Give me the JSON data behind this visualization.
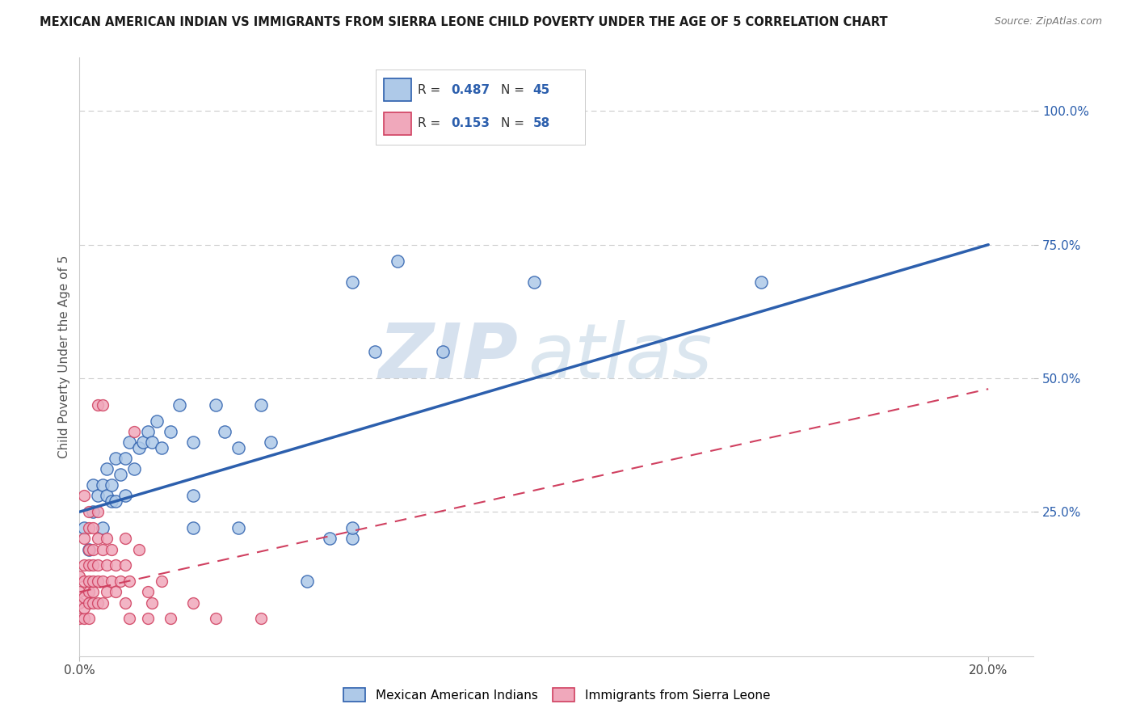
{
  "title": "MEXICAN AMERICAN INDIAN VS IMMIGRANTS FROM SIERRA LEONE CHILD POVERTY UNDER THE AGE OF 5 CORRELATION CHART",
  "source": "Source: ZipAtlas.com",
  "ylabel": "Child Poverty Under the Age of 5",
  "xlim": [
    0.0,
    0.21
  ],
  "ylim": [
    -0.02,
    1.1
  ],
  "xtick_positions": [
    0.0,
    0.2
  ],
  "xtick_labels": [
    "0.0%",
    "20.0%"
  ],
  "ytick_positions": [
    0.25,
    0.5,
    0.75,
    1.0
  ],
  "ytick_labels": [
    "25.0%",
    "50.0%",
    "75.0%",
    "100.0%"
  ],
  "watermark": "ZIPatlas",
  "legend_label_blue": "Mexican American Indians",
  "legend_label_pink": "Immigrants from Sierra Leone",
  "R_blue": "0.487",
  "N_blue": "45",
  "R_pink": "0.153",
  "N_pink": "58",
  "blue_dots": [
    [
      0.001,
      0.22
    ],
    [
      0.002,
      0.18
    ],
    [
      0.003,
      0.25
    ],
    [
      0.003,
      0.3
    ],
    [
      0.004,
      0.28
    ],
    [
      0.005,
      0.22
    ],
    [
      0.005,
      0.3
    ],
    [
      0.006,
      0.28
    ],
    [
      0.006,
      0.33
    ],
    [
      0.007,
      0.3
    ],
    [
      0.007,
      0.27
    ],
    [
      0.008,
      0.35
    ],
    [
      0.008,
      0.27
    ],
    [
      0.009,
      0.32
    ],
    [
      0.01,
      0.28
    ],
    [
      0.01,
      0.35
    ],
    [
      0.011,
      0.38
    ],
    [
      0.012,
      0.33
    ],
    [
      0.013,
      0.37
    ],
    [
      0.014,
      0.38
    ],
    [
      0.015,
      0.4
    ],
    [
      0.016,
      0.38
    ],
    [
      0.017,
      0.42
    ],
    [
      0.018,
      0.37
    ],
    [
      0.02,
      0.4
    ],
    [
      0.022,
      0.45
    ],
    [
      0.025,
      0.38
    ],
    [
      0.025,
      0.28
    ],
    [
      0.025,
      0.22
    ],
    [
      0.03,
      0.45
    ],
    [
      0.032,
      0.4
    ],
    [
      0.035,
      0.37
    ],
    [
      0.035,
      0.22
    ],
    [
      0.04,
      0.45
    ],
    [
      0.042,
      0.38
    ],
    [
      0.05,
      0.12
    ],
    [
      0.055,
      0.2
    ],
    [
      0.06,
      0.2
    ],
    [
      0.06,
      0.22
    ],
    [
      0.06,
      0.68
    ],
    [
      0.065,
      0.55
    ],
    [
      0.07,
      0.72
    ],
    [
      0.08,
      0.55
    ],
    [
      0.1,
      0.68
    ],
    [
      0.15,
      0.68
    ]
  ],
  "pink_dots": [
    [
      0.0,
      0.05
    ],
    [
      0.0,
      0.08
    ],
    [
      0.0,
      0.1
    ],
    [
      0.0,
      0.13
    ],
    [
      0.001,
      0.05
    ],
    [
      0.001,
      0.07
    ],
    [
      0.001,
      0.09
    ],
    [
      0.001,
      0.12
    ],
    [
      0.001,
      0.15
    ],
    [
      0.001,
      0.2
    ],
    [
      0.001,
      0.28
    ],
    [
      0.002,
      0.05
    ],
    [
      0.002,
      0.08
    ],
    [
      0.002,
      0.1
    ],
    [
      0.002,
      0.12
    ],
    [
      0.002,
      0.15
    ],
    [
      0.002,
      0.18
    ],
    [
      0.002,
      0.22
    ],
    [
      0.002,
      0.25
    ],
    [
      0.003,
      0.08
    ],
    [
      0.003,
      0.1
    ],
    [
      0.003,
      0.12
    ],
    [
      0.003,
      0.15
    ],
    [
      0.003,
      0.18
    ],
    [
      0.003,
      0.22
    ],
    [
      0.004,
      0.08
    ],
    [
      0.004,
      0.12
    ],
    [
      0.004,
      0.15
    ],
    [
      0.004,
      0.2
    ],
    [
      0.004,
      0.25
    ],
    [
      0.004,
      0.45
    ],
    [
      0.005,
      0.08
    ],
    [
      0.005,
      0.12
    ],
    [
      0.005,
      0.18
    ],
    [
      0.005,
      0.45
    ],
    [
      0.006,
      0.1
    ],
    [
      0.006,
      0.15
    ],
    [
      0.006,
      0.2
    ],
    [
      0.007,
      0.12
    ],
    [
      0.007,
      0.18
    ],
    [
      0.008,
      0.1
    ],
    [
      0.008,
      0.15
    ],
    [
      0.009,
      0.12
    ],
    [
      0.01,
      0.08
    ],
    [
      0.01,
      0.15
    ],
    [
      0.01,
      0.2
    ],
    [
      0.011,
      0.05
    ],
    [
      0.011,
      0.12
    ],
    [
      0.012,
      0.4
    ],
    [
      0.013,
      0.18
    ],
    [
      0.015,
      0.05
    ],
    [
      0.015,
      0.1
    ],
    [
      0.016,
      0.08
    ],
    [
      0.018,
      0.12
    ],
    [
      0.02,
      0.05
    ],
    [
      0.025,
      0.08
    ],
    [
      0.03,
      0.05
    ],
    [
      0.04,
      0.05
    ]
  ],
  "blue_line_x": [
    0.0,
    0.2
  ],
  "blue_line_y": [
    0.25,
    0.75
  ],
  "pink_line_x": [
    0.0,
    0.2
  ],
  "pink_line_y": [
    0.1,
    0.48
  ],
  "blue_color": "#2c5fad",
  "pink_color": "#d04060",
  "blue_dot_facecolor": "#aec9e8",
  "pink_dot_facecolor": "#f0a8bb",
  "background_color": "#ffffff",
  "grid_color": "#cccccc",
  "title_fontsize": 10.5,
  "axis_label_fontsize": 11,
  "tick_fontsize": 11
}
